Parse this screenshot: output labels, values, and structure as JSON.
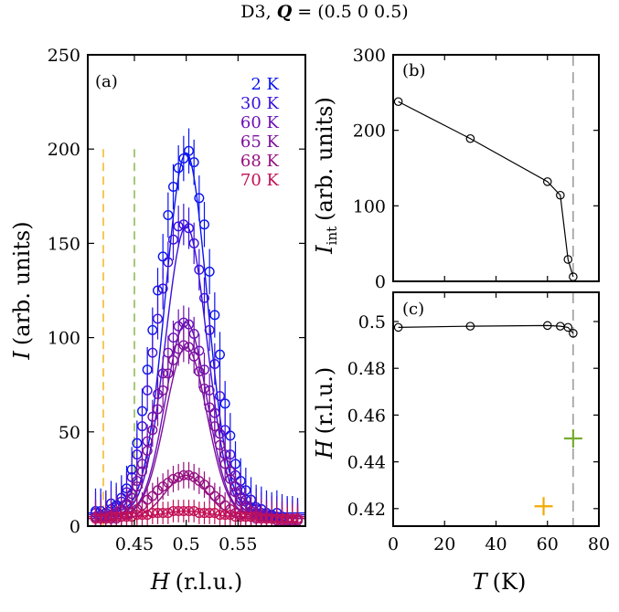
{
  "title": "D3, Q = (0.5 0 0.5)",
  "title_parts": {
    "prefix": "D3, ",
    "q": "Q",
    "suffix": " = (0.5 0 0.5)"
  },
  "chart_data": [
    {
      "id": "a",
      "panel_label": "(a)",
      "type": "scatter",
      "xlabel": "H (r.l.u.)",
      "xlabel_parts": {
        "var": "H",
        "unit": "(r.l.u.)"
      },
      "ylabel": "I (arb. units)",
      "ylabel_parts": {
        "var": "I",
        "unit": "(arb. units)"
      },
      "xlim": [
        0.405,
        0.615
      ],
      "ylim": [
        0,
        250
      ],
      "xticks": [
        0.45,
        0.5,
        0.55
      ],
      "xtick_labels": [
        "0.45",
        "0.5",
        "0.55"
      ],
      "yticks": [
        0,
        50,
        100,
        150,
        200,
        250
      ],
      "ytick_labels": [
        "0",
        "50",
        "100",
        "150",
        "200",
        "250"
      ],
      "vlines": [
        {
          "x": 0.42,
          "color": "#f2a900",
          "style": "dashed"
        },
        {
          "x": 0.45,
          "color": "#77ac30",
          "style": "dashed"
        }
      ],
      "fit_center": 0.5,
      "fit_sigma": 0.02,
      "x": [
        0.4125,
        0.4175,
        0.4225,
        0.4275,
        0.4325,
        0.4375,
        0.4425,
        0.4475,
        0.4525,
        0.4575,
        0.4625,
        0.4675,
        0.4725,
        0.4775,
        0.4825,
        0.4875,
        0.4925,
        0.4975,
        0.5025,
        0.5075,
        0.5125,
        0.5175,
        0.5225,
        0.5275,
        0.5325,
        0.5375,
        0.5425,
        0.5475,
        0.5525,
        0.5575,
        0.5625,
        0.5675,
        0.5725,
        0.5775,
        0.5825,
        0.5875,
        0.5925,
        0.5975,
        0.6025,
        0.6075
      ],
      "series": [
        {
          "name": "2 K",
          "color": "#0a14ee",
          "background": 7,
          "amplitude": 191,
          "errorbar": 12,
          "values": [
            8,
            8,
            7,
            12,
            11,
            15,
            20,
            30,
            44,
            61,
            83,
            104,
            125,
            143,
            165,
            180,
            190,
            195,
            199,
            193,
            174,
            160,
            135,
            112,
            91,
            65,
            48,
            33,
            24,
            19,
            14,
            10,
            9,
            7,
            6,
            7,
            5,
            4,
            4,
            3
          ]
        },
        {
          "name": "30 K",
          "color": "#3a10dd",
          "background": 6,
          "amplitude": 153,
          "errorbar": 11,
          "values": [
            7,
            6,
            7,
            9,
            10,
            13,
            18,
            26,
            38,
            53,
            72,
            92,
            110,
            126,
            140,
            152,
            159,
            160,
            158,
            150,
            136,
            121,
            104,
            86,
            69,
            51,
            38,
            27,
            19,
            14,
            10,
            9,
            7,
            6,
            5,
            5,
            4,
            4,
            3,
            3
          ]
        },
        {
          "name": "60 K",
          "color": "#6c11b5",
          "background": 5,
          "amplitude": 103,
          "errorbar": 9,
          "values": [
            5,
            5,
            5,
            6,
            7,
            9,
            12,
            17,
            24,
            33,
            45,
            58,
            70,
            81,
            92,
            100,
            106,
            108,
            107,
            102,
            93,
            83,
            72,
            60,
            49,
            38,
            29,
            21,
            15,
            11,
            8,
            7,
            6,
            5,
            4,
            4,
            4,
            3,
            3,
            3
          ]
        },
        {
          "name": "65 K",
          "color": "#7e129e",
          "background": 5,
          "amplitude": 90,
          "errorbar": 9,
          "values": [
            5,
            5,
            5,
            6,
            7,
            8,
            11,
            15,
            21,
            29,
            40,
            51,
            62,
            72,
            81,
            88,
            94,
            96,
            95,
            90,
            82,
            73,
            63,
            53,
            43,
            33,
            25,
            18,
            13,
            10,
            8,
            6,
            5,
            5,
            4,
            4,
            4,
            3,
            3,
            3
          ]
        },
        {
          "name": "68 K",
          "color": "#951180",
          "background": 4,
          "amplitude": 23,
          "errorbar": 7,
          "values": [
            4,
            4,
            4,
            4,
            4,
            5,
            6,
            7,
            9,
            11,
            14,
            16,
            19,
            21,
            23,
            25,
            26,
            27,
            27,
            26,
            24,
            22,
            19,
            16,
            14,
            11,
            9,
            7,
            6,
            5,
            5,
            4,
            4,
            4,
            4,
            3,
            3,
            3,
            3,
            3
          ]
        },
        {
          "name": "70 K",
          "color": "#c21056",
          "background": 5,
          "amplitude": 3,
          "errorbar": 6,
          "values": [
            4,
            4,
            4,
            5,
            5,
            5,
            5,
            5,
            6,
            6,
            6,
            7,
            7,
            7,
            7,
            8,
            8,
            8,
            8,
            8,
            7,
            7,
            7,
            7,
            6,
            6,
            6,
            5,
            5,
            5,
            5,
            5,
            4,
            4,
            4,
            4,
            4,
            4,
            4,
            4
          ]
        }
      ]
    },
    {
      "id": "b",
      "panel_label": "(b)",
      "type": "line",
      "ylabel": "I_int (arb. units)",
      "ylabel_parts": {
        "var": "I",
        "sub": "int",
        "unit": "(arb. units)"
      },
      "xlim": [
        0,
        80
      ],
      "ylim": [
        0,
        300
      ],
      "yticks": [
        0,
        100,
        200,
        300
      ],
      "ytick_labels": [
        "0",
        "100",
        "200",
        "300"
      ],
      "vline": {
        "x": 70,
        "color": "#888888",
        "style": "dashed"
      },
      "x": [
        2,
        30,
        60,
        65,
        68,
        70
      ],
      "y": [
        238,
        189,
        132,
        114,
        29,
        6
      ]
    },
    {
      "id": "c",
      "panel_label": "(c)",
      "type": "line",
      "xlabel": "T (K)",
      "xlabel_parts": {
        "var": "T",
        "unit": "(K)"
      },
      "ylabel": "H (r.l.u.)",
      "ylabel_parts": {
        "var": "H",
        "unit": "(r.l.u.)"
      },
      "xlim": [
        0,
        80
      ],
      "ylim": [
        0.4125,
        0.5125
      ],
      "xticks": [
        0,
        20,
        40,
        60,
        80
      ],
      "xtick_labels": [
        "0",
        "20",
        "40",
        "60",
        "80"
      ],
      "yticks": [
        0.42,
        0.44,
        0.46,
        0.48,
        0.5
      ],
      "ytick_labels": [
        "0.42",
        "0.44",
        "0.46",
        "0.48",
        "0.5"
      ],
      "vline": {
        "x": 70,
        "color": "#888888",
        "style": "dashed"
      },
      "x": [
        2,
        30,
        60,
        65,
        68,
        70
      ],
      "y": [
        0.4975,
        0.498,
        0.4983,
        0.498,
        0.4975,
        0.495
      ],
      "markers": [
        {
          "x": 58.5,
          "y": 0.421,
          "color": "#f2a900",
          "shape": "plus"
        },
        {
          "x": 70,
          "y": 0.45,
          "color": "#77ac30",
          "shape": "plus"
        }
      ]
    }
  ]
}
